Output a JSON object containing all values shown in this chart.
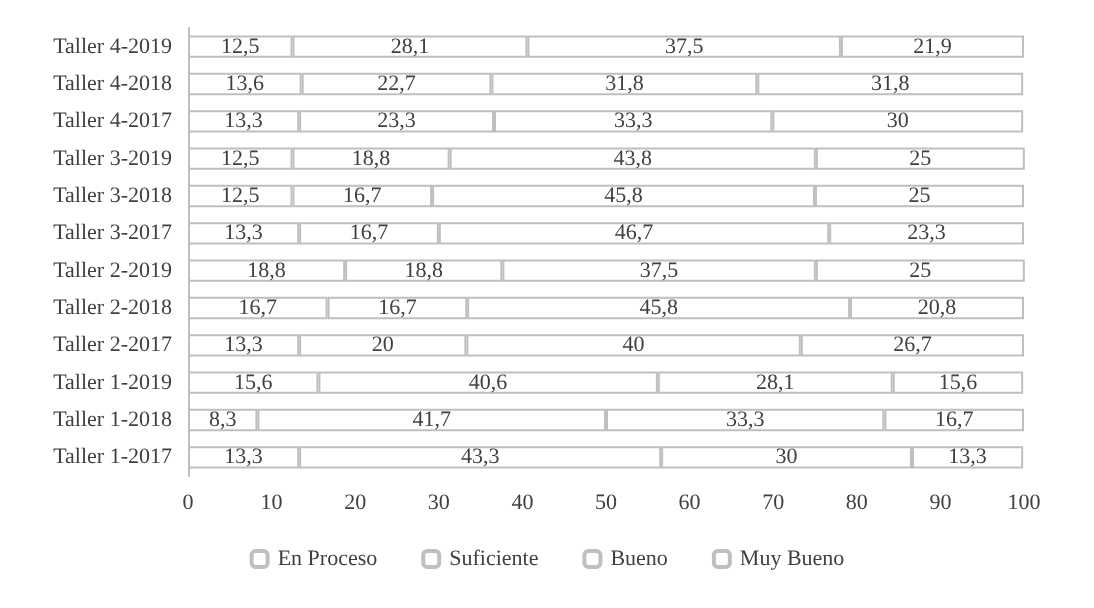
{
  "chart_data": {
    "type": "bar",
    "orientation": "horizontal",
    "stacked": true,
    "legend": "bottom",
    "grid": false,
    "categories": [
      "Taller 4-2019",
      "Taller 4-2018",
      "Taller 4-2017",
      "Taller 3-2019",
      "Taller 3-2018",
      "Taller 3-2017",
      "Taller 2-2019",
      "Taller 2-2018",
      "Taller 2-2017",
      "Taller 1-2019",
      "Taller 1-2018",
      "Taller 1-2017"
    ],
    "xlim": [
      0,
      100
    ],
    "xticks": [
      0,
      10,
      20,
      30,
      40,
      50,
      60,
      70,
      80,
      90,
      100
    ],
    "series": [
      {
        "name": "En Proceso",
        "color": "#ffffff",
        "values": [
          12.5,
          13.6,
          13.3,
          12.5,
          12.5,
          13.3,
          18.8,
          16.7,
          13.3,
          15.6,
          8.3,
          13.3
        ],
        "value_labels": [
          "12,5",
          "13,6",
          "13,3",
          "12,5",
          "12,5",
          "13,3",
          "18,8",
          "16,7",
          "13,3",
          "15,6",
          "8,3",
          "13,3"
        ]
      },
      {
        "name": "Suficiente",
        "color": "#ffffff",
        "values": [
          28.1,
          22.7,
          23.3,
          18.8,
          16.7,
          16.7,
          18.8,
          16.7,
          20,
          40.6,
          41.7,
          43.3
        ],
        "value_labels": [
          "28,1",
          "22,7",
          "23,3",
          "18,8",
          "16,7",
          "16,7",
          "18,8",
          "16,7",
          "20",
          "40,6",
          "41,7",
          "43,3"
        ]
      },
      {
        "name": "Bueno",
        "color": "#ffffff",
        "values": [
          37.5,
          31.8,
          33.3,
          43.8,
          45.8,
          46.7,
          37.5,
          45.8,
          40,
          28.1,
          33.3,
          30
        ],
        "value_labels": [
          "37,5",
          "31,8",
          "33,3",
          "43,8",
          "45,8",
          "46,7",
          "37,5",
          "45,8",
          "40",
          "28,1",
          "33,3",
          "30"
        ]
      },
      {
        "name": "Muy Bueno",
        "color": "#ffffff",
        "values": [
          21.9,
          31.8,
          30,
          25,
          25,
          23.3,
          25,
          20.8,
          26.7,
          15.6,
          16.7,
          13.3
        ],
        "value_labels": [
          "21,9",
          "31,8",
          "30",
          "25",
          "25",
          "23,3",
          "25",
          "20,8",
          "26,7",
          "15,6",
          "16,7",
          "13,3"
        ]
      }
    ]
  }
}
